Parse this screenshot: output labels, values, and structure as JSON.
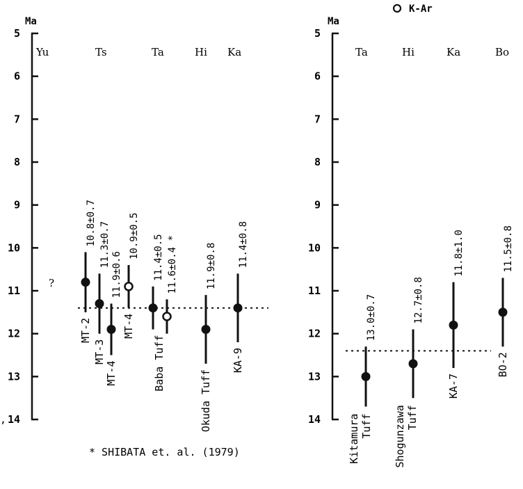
{
  "legend": {
    "text": "K-Ar"
  },
  "footnote": "* SHIBATA et. al. (1979)",
  "stray_marks": {
    "left_margin": ",",
    "question": "?"
  },
  "chart_data": [
    {
      "type": "scatter",
      "ylabel": "Ma",
      "ylim": [
        5,
        14
      ],
      "y_reversed": true,
      "yticks": [
        "5",
        "6",
        "7",
        "8",
        "9",
        "10",
        "11",
        "12",
        "13",
        "14"
      ],
      "groups": [
        "Yu",
        "Ts",
        "Ta",
        "Hi",
        "Ka"
      ],
      "reference_line_age": 11.4,
      "points": [
        {
          "label": "MT-2",
          "age": 10.8,
          "err": 0.7,
          "age_text": "10.8±0.7",
          "marker": "filled",
          "group": "Ts"
        },
        {
          "label": "MT-3",
          "age": 11.3,
          "err": 0.7,
          "age_text": "11.3±0.7",
          "marker": "filled",
          "group": "Ts"
        },
        {
          "label": "MT-4",
          "age": 11.9,
          "err": 0.6,
          "age_text": "11.9±0.6",
          "marker": "filled",
          "group": "Ts"
        },
        {
          "label": "MT-4",
          "age": 10.9,
          "err": 0.5,
          "age_text": "10.9±0.5",
          "marker": "open",
          "group": "Ts"
        },
        {
          "label": "Baba Tuff",
          "age": 11.4,
          "err": 0.5,
          "age_text": "11.4±0.5",
          "marker": "filled",
          "group": "Ta"
        },
        {
          "label": "",
          "age": 11.6,
          "err": 0.4,
          "age_text": "11.6±0.4 *",
          "marker": "open",
          "group": "Ta"
        },
        {
          "label": "Okuda Tuff",
          "age": 11.9,
          "err": 0.8,
          "age_text": "11.9±0.8",
          "marker": "filled",
          "group": "Hi"
        },
        {
          "label": "KA-9",
          "age": 11.4,
          "err": 0.8,
          "age_text": "11.4±0.8",
          "marker": "filled",
          "group": "Ka"
        }
      ]
    },
    {
      "type": "scatter",
      "ylabel": "Ma",
      "ylim": [
        5,
        14
      ],
      "y_reversed": true,
      "yticks": [
        "5",
        "6",
        "7",
        "8",
        "9",
        "10",
        "11",
        "12",
        "13",
        "14"
      ],
      "groups": [
        "Ta",
        "Hi",
        "Ka",
        "Bo"
      ],
      "reference_line_age": 12.4,
      "points": [
        {
          "label": "Kitamura Tuff",
          "age": 13.0,
          "err": 0.7,
          "age_text": "13.0±0.7",
          "marker": "filled",
          "group": "Ta"
        },
        {
          "label": "Shogunzawa Tuff",
          "age": 12.7,
          "err": 0.8,
          "age_text": "12.7±0.8",
          "marker": "filled",
          "group": "Hi"
        },
        {
          "label": "KA-7",
          "age": 11.8,
          "err": 1.0,
          "age_text": "11.8±1.0",
          "marker": "filled",
          "group": "Ka"
        },
        {
          "label": "BO-2",
          "age": 11.5,
          "err": 0.8,
          "age_text": "11.5±0.8",
          "marker": "filled",
          "group": "Bo"
        }
      ]
    }
  ]
}
